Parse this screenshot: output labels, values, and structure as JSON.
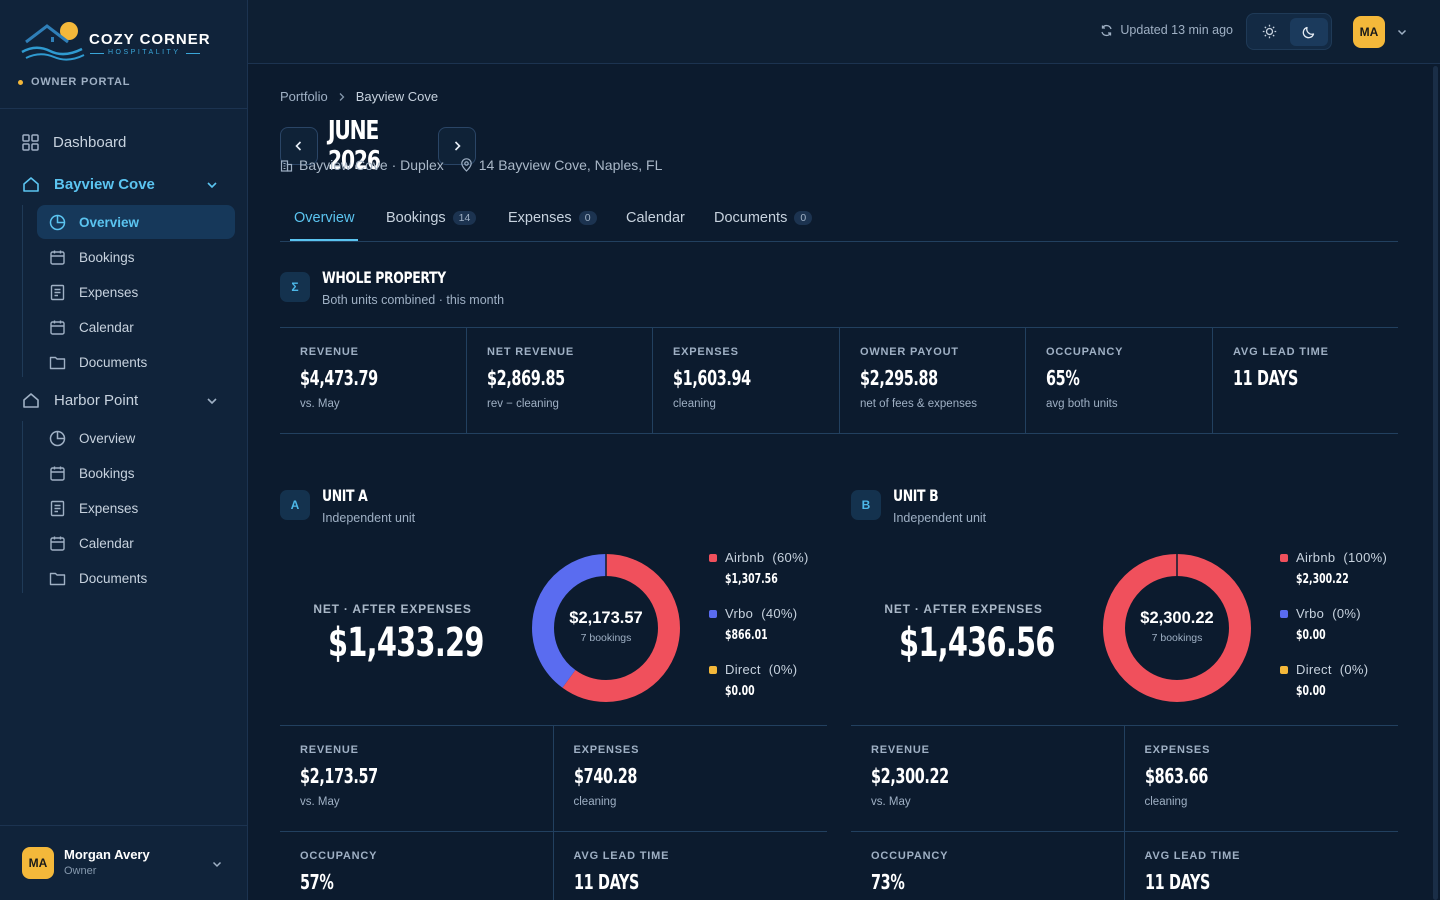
{
  "brand": {
    "name": "COZY CORNER",
    "tagline": "HOSPITALITY",
    "portal": "OWNER PORTAL"
  },
  "sidebar": {
    "dashboard": "Dashboard",
    "groups": [
      {
        "title": "Bayview Cove",
        "items": [
          "Overview",
          "Bookings",
          "Expenses",
          "Calendar",
          "Documents"
        ],
        "active_item": "Overview"
      },
      {
        "title": "Harbor Point",
        "items": [
          "Overview",
          "Bookings",
          "Expenses",
          "Calendar",
          "Documents"
        ]
      }
    ],
    "user": {
      "initials": "MA",
      "name": "Morgan Avery",
      "role": "Owner"
    }
  },
  "topbar": {
    "updated": "Updated 13 min ago",
    "initials": "MA"
  },
  "breadcrumb": [
    "Portfolio",
    "Bayview Cove"
  ],
  "month": "JUNE 2026",
  "property": {
    "name": "Bayview Cove · Duplex",
    "address": "14 Bayview Cove, Naples, FL"
  },
  "tabs": [
    {
      "label": "Overview",
      "badge": ""
    },
    {
      "label": "Bookings",
      "badge": "14"
    },
    {
      "label": "Expenses",
      "badge": "0"
    },
    {
      "label": "Calendar",
      "badge": ""
    },
    {
      "label": "Documents",
      "badge": "0"
    }
  ],
  "whole": {
    "icon": "Σ",
    "title": "WHOLE PROPERTY",
    "subtitle": "Both units combined · this month",
    "stats": [
      {
        "label": "REVENUE",
        "value": "$4,473.79",
        "note": "vs. May"
      },
      {
        "label": "NET REVENUE",
        "value": "$2,869.85",
        "note": "rev − cleaning"
      },
      {
        "label": "EXPENSES",
        "value": "$1,603.94",
        "note": "cleaning"
      },
      {
        "label": "OWNER PAYOUT",
        "value": "$2,295.88",
        "note": "net of fees & expenses"
      },
      {
        "label": "OCCUPANCY",
        "value": "65%",
        "note": "avg both units"
      },
      {
        "label": "AVG LEAD TIME",
        "value": "11 DAYS",
        "note": ""
      }
    ]
  },
  "units": [
    {
      "icon": "A",
      "title": "UNIT A",
      "subtitle": "Independent unit",
      "net_label": "NET · AFTER EXPENSES",
      "net_value": "$1,433.29",
      "donut": {
        "total": "$2,173.57",
        "bookings": "7 bookings"
      },
      "channels": [
        {
          "name": "Airbnb",
          "pct": "(60%)",
          "value": "$1,307.56",
          "share": 0.6,
          "color": "#f0505c"
        },
        {
          "name": "Vrbo",
          "pct": "(40%)",
          "value": "$866.01",
          "share": 0.4,
          "color": "#5a6cf0"
        },
        {
          "name": "Direct",
          "pct": "(0%)",
          "value": "$0.00",
          "share": 0,
          "color": "#f4b83a"
        }
      ],
      "stats": [
        {
          "label": "REVENUE",
          "value": "$2,173.57",
          "note": "vs. May"
        },
        {
          "label": "EXPENSES",
          "value": "$740.28",
          "note": "cleaning"
        },
        {
          "label": "OCCUPANCY",
          "value": "57%",
          "note": ""
        },
        {
          "label": "AVG LEAD TIME",
          "value": "11 DAYS",
          "note": ""
        }
      ]
    },
    {
      "icon": "B",
      "title": "UNIT B",
      "subtitle": "Independent unit",
      "net_label": "NET · AFTER EXPENSES",
      "net_value": "$1,436.56",
      "donut": {
        "total": "$2,300.22",
        "bookings": "7 bookings"
      },
      "channels": [
        {
          "name": "Airbnb",
          "pct": "(100%)",
          "value": "$2,300.22",
          "share": 1.0,
          "color": "#f0505c"
        },
        {
          "name": "Vrbo",
          "pct": "(0%)",
          "value": "$0.00",
          "share": 0,
          "color": "#5a6cf0"
        },
        {
          "name": "Direct",
          "pct": "(0%)",
          "value": "$0.00",
          "share": 0,
          "color": "#f4b83a"
        }
      ],
      "stats": [
        {
          "label": "REVENUE",
          "value": "$2,300.22",
          "note": "vs. May"
        },
        {
          "label": "EXPENSES",
          "value": "$863.66",
          "note": "cleaning"
        },
        {
          "label": "OCCUPANCY",
          "value": "73%",
          "note": ""
        },
        {
          "label": "AVG LEAD TIME",
          "value": "11 DAYS",
          "note": ""
        }
      ]
    }
  ]
}
